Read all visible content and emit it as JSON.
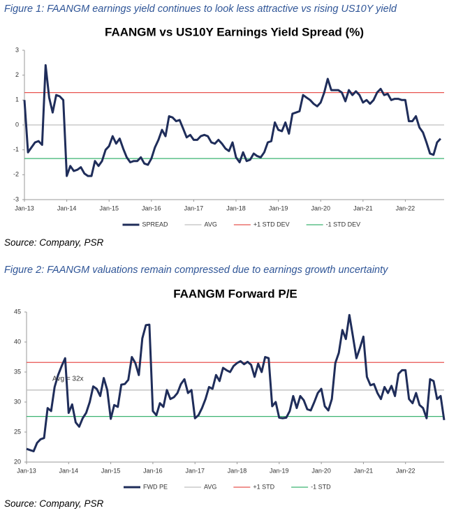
{
  "figures": [
    {
      "caption": "Figure 1: FAANGM earnings yield continues to look less attractive vs rising US10Y yield",
      "source": "Source: Company, PSR"
    },
    {
      "caption": "Figure 2: FAANGM valuations remain compressed due to earnings growth uncertainty",
      "source": "Source: Company, PSR"
    }
  ],
  "chart_data": [
    {
      "type": "line",
      "title": "FAANGM vs US10Y Earnings Yield Spread (%)",
      "x": [
        "2013-01",
        "2013-02",
        "2013-03",
        "2013-04",
        "2013-05",
        "2013-06",
        "2013-07",
        "2013-08",
        "2013-09",
        "2013-10",
        "2013-11",
        "2013-12",
        "2014-01",
        "2014-02",
        "2014-03",
        "2014-04",
        "2014-05",
        "2014-06",
        "2014-07",
        "2014-08",
        "2014-09",
        "2014-10",
        "2014-11",
        "2014-12",
        "2015-01",
        "2015-02",
        "2015-03",
        "2015-04",
        "2015-05",
        "2015-06",
        "2015-07",
        "2015-08",
        "2015-09",
        "2015-10",
        "2015-11",
        "2015-12",
        "2016-01",
        "2016-02",
        "2016-03",
        "2016-04",
        "2016-05",
        "2016-06",
        "2016-07",
        "2016-08",
        "2016-09",
        "2016-10",
        "2016-11",
        "2016-12",
        "2017-01",
        "2017-02",
        "2017-03",
        "2017-04",
        "2017-05",
        "2017-06",
        "2017-07",
        "2017-08",
        "2017-09",
        "2017-10",
        "2017-11",
        "2017-12",
        "2018-01",
        "2018-02",
        "2018-03",
        "2018-04",
        "2018-05",
        "2018-06",
        "2018-07",
        "2018-08",
        "2018-09",
        "2018-10",
        "2018-11",
        "2018-12",
        "2019-01",
        "2019-02",
        "2019-03",
        "2019-04",
        "2019-05",
        "2019-06",
        "2019-07",
        "2019-08",
        "2019-09",
        "2019-10",
        "2019-11",
        "2019-12",
        "2020-01",
        "2020-02",
        "2020-03",
        "2020-04",
        "2020-05",
        "2020-06",
        "2020-07",
        "2020-08",
        "2020-09",
        "2020-10",
        "2020-11",
        "2020-12",
        "2021-01",
        "2021-02",
        "2021-03",
        "2021-04",
        "2021-05",
        "2021-06",
        "2021-07",
        "2021-08",
        "2021-09",
        "2021-10",
        "2021-11",
        "2021-12",
        "2022-01",
        "2022-02",
        "2022-03",
        "2022-04",
        "2022-05",
        "2022-06",
        "2022-07",
        "2022-08",
        "2022-09",
        "2022-10",
        "2022-11"
      ],
      "series": [
        {
          "name": "SPREAD",
          "color": "#1f2d5a",
          "values": [
            1.0,
            -1.1,
            -0.9,
            -0.7,
            -0.65,
            -0.8,
            2.4,
            1.1,
            0.5,
            1.2,
            1.15,
            1.0,
            -2.05,
            -1.65,
            -1.85,
            -1.8,
            -1.7,
            -1.95,
            -2.05,
            -2.05,
            -1.45,
            -1.65,
            -1.45,
            -1.0,
            -0.85,
            -0.45,
            -0.75,
            -0.55,
            -0.95,
            -1.3,
            -1.5,
            -1.45,
            -1.45,
            -1.3,
            -1.55,
            -1.6,
            -1.35,
            -0.9,
            -0.6,
            -0.2,
            -0.45,
            0.35,
            0.3,
            0.15,
            0.2,
            -0.15,
            -0.5,
            -0.4,
            -0.6,
            -0.6,
            -0.45,
            -0.4,
            -0.45,
            -0.7,
            -0.75,
            -0.6,
            -0.75,
            -0.95,
            -1.05,
            -0.7,
            -1.3,
            -1.5,
            -1.1,
            -1.45,
            -1.4,
            -1.15,
            -1.25,
            -1.3,
            -1.1,
            -0.7,
            -0.65,
            0.1,
            -0.2,
            -0.25,
            0.1,
            -0.35,
            0.45,
            0.5,
            0.55,
            1.2,
            1.1,
            1.0,
            0.85,
            0.75,
            0.9,
            1.3,
            1.85,
            1.4,
            1.4,
            1.4,
            1.3,
            0.95,
            1.4,
            1.2,
            1.35,
            1.2,
            0.9,
            1.0,
            0.85,
            1.0,
            1.3,
            1.45,
            1.2,
            1.25,
            1.0,
            1.05,
            1.05,
            1.0,
            1.0,
            0.15,
            0.15,
            0.35,
            -0.1,
            -0.3,
            -0.7,
            -1.15,
            -1.2,
            -0.7,
            -0.55
          ]
        }
      ],
      "reference_lines": [
        {
          "name": "AVG",
          "color": "#bfbfbf",
          "value": 0
        },
        {
          "name": "+1 STD DEV",
          "color": "#e8534f",
          "value": 1.3
        },
        {
          "name": "-1 STD DEV",
          "color": "#3cb371",
          "value": -1.35
        }
      ],
      "xlim": [
        "2013-01",
        "2022-12"
      ],
      "xticks": [
        {
          "value": "2013-01",
          "label": "Jan-13"
        },
        {
          "value": "2014-01",
          "label": "Jan-14"
        },
        {
          "value": "2015-01",
          "label": "Jan-15"
        },
        {
          "value": "2016-01",
          "label": "Jan-16"
        },
        {
          "value": "2017-01",
          "label": "Jan-17"
        },
        {
          "value": "2018-01",
          "label": "Jan-18"
        },
        {
          "value": "2019-01",
          "label": "Jan-19"
        },
        {
          "value": "2020-01",
          "label": "Jan-20"
        },
        {
          "value": "2021-01",
          "label": "Jan-21"
        },
        {
          "value": "2022-01",
          "label": "Jan-22"
        }
      ],
      "ylim": [
        -3,
        3
      ],
      "yticks": [
        -3,
        -2,
        -1,
        0,
        1,
        2,
        3
      ]
    },
    {
      "type": "line",
      "title": "FAANGM Forward P/E",
      "x": [
        "2013-01",
        "2013-02",
        "2013-03",
        "2013-04",
        "2013-05",
        "2013-06",
        "2013-07",
        "2013-08",
        "2013-09",
        "2013-10",
        "2013-11",
        "2013-12",
        "2014-01",
        "2014-02",
        "2014-03",
        "2014-04",
        "2014-05",
        "2014-06",
        "2014-07",
        "2014-08",
        "2014-09",
        "2014-10",
        "2014-11",
        "2014-12",
        "2015-01",
        "2015-02",
        "2015-03",
        "2015-04",
        "2015-05",
        "2015-06",
        "2015-07",
        "2015-08",
        "2015-09",
        "2015-10",
        "2015-11",
        "2015-12",
        "2016-01",
        "2016-02",
        "2016-03",
        "2016-04",
        "2016-05",
        "2016-06",
        "2016-07",
        "2016-08",
        "2016-09",
        "2016-10",
        "2016-11",
        "2016-12",
        "2017-01",
        "2017-02",
        "2017-03",
        "2017-04",
        "2017-05",
        "2017-06",
        "2017-07",
        "2017-08",
        "2017-09",
        "2017-10",
        "2017-11",
        "2017-12",
        "2018-01",
        "2018-02",
        "2018-03",
        "2018-04",
        "2018-05",
        "2018-06",
        "2018-07",
        "2018-08",
        "2018-09",
        "2018-10",
        "2018-11",
        "2018-12",
        "2019-01",
        "2019-02",
        "2019-03",
        "2019-04",
        "2019-05",
        "2019-06",
        "2019-07",
        "2019-08",
        "2019-09",
        "2019-10",
        "2019-11",
        "2019-12",
        "2020-01",
        "2020-02",
        "2020-03",
        "2020-04",
        "2020-05",
        "2020-06",
        "2020-07",
        "2020-08",
        "2020-09",
        "2020-10",
        "2020-11",
        "2020-12",
        "2021-01",
        "2021-02",
        "2021-03",
        "2021-04",
        "2021-05",
        "2021-06",
        "2021-07",
        "2021-08",
        "2021-09",
        "2021-10",
        "2021-11",
        "2021-12",
        "2022-01",
        "2022-02",
        "2022-03",
        "2022-04",
        "2022-05",
        "2022-06",
        "2022-07",
        "2022-08",
        "2022-09",
        "2022-10",
        "2022-11",
        "2022-12"
      ],
      "series": [
        {
          "name": "FWD PE",
          "color": "#1f2d5a",
          "values": [
            22.2,
            22.0,
            21.8,
            23.2,
            23.8,
            24.0,
            29.0,
            28.5,
            32.5,
            34.5,
            36.0,
            37.3,
            28.2,
            29.6,
            26.6,
            25.9,
            27.3,
            28.2,
            30.0,
            32.6,
            32.2,
            31.0,
            34.0,
            32.0,
            27.2,
            29.5,
            29.2,
            32.9,
            33.0,
            33.7,
            37.5,
            36.5,
            34.5,
            40.6,
            42.8,
            42.9,
            28.5,
            27.8,
            29.8,
            29.2,
            32.0,
            30.5,
            30.8,
            31.5,
            33.0,
            33.8,
            31.5,
            32.0,
            27.3,
            27.8,
            29.0,
            30.5,
            32.5,
            32.2,
            34.5,
            33.5,
            35.7,
            35.3,
            35.0,
            36.0,
            36.5,
            36.8,
            36.3,
            36.7,
            36.2,
            34.2,
            36.4,
            35.0,
            37.5,
            37.3,
            29.3,
            30.0,
            27.4,
            27.3,
            27.4,
            28.5,
            31.0,
            29.0,
            31.0,
            30.3,
            28.8,
            28.6,
            30.0,
            31.5,
            32.2,
            29.3,
            28.6,
            30.5,
            36.5,
            38.2,
            42.0,
            40.5,
            44.5,
            41.0,
            37.3,
            39.0,
            40.9,
            34.2,
            32.8,
            33.0,
            31.5,
            30.5,
            32.5,
            31.5,
            32.7,
            31.0,
            34.7,
            35.3,
            35.3,
            30.5,
            29.8,
            31.5,
            29.5,
            29.0,
            27.3,
            33.8,
            33.5,
            30.5,
            31.0,
            27.0
          ]
        }
      ],
      "reference_lines": [
        {
          "name": "AVG",
          "color": "#bfbfbf",
          "value": 32
        },
        {
          "name": "+1 STD",
          "color": "#e8534f",
          "value": 36.6
        },
        {
          "name": "-1 STD",
          "color": "#3cb371",
          "value": 27.6
        }
      ],
      "annotation": {
        "text": "Avg = 32x",
        "x": "2013-12",
        "y": 32
      },
      "xlim": [
        "2013-01",
        "2022-12"
      ],
      "xticks": [
        {
          "value": "2013-01",
          "label": "Jan-13"
        },
        {
          "value": "2014-01",
          "label": "Jan-14"
        },
        {
          "value": "2015-01",
          "label": "Jan-15"
        },
        {
          "value": "2016-01",
          "label": "Jan-16"
        },
        {
          "value": "2017-01",
          "label": "Jan-17"
        },
        {
          "value": "2018-01",
          "label": "Jan-18"
        },
        {
          "value": "2019-01",
          "label": "Jan-19"
        },
        {
          "value": "2020-01",
          "label": "Jan-20"
        },
        {
          "value": "2021-01",
          "label": "Jan-21"
        },
        {
          "value": "2022-01",
          "label": "Jan-22"
        }
      ],
      "ylim": [
        20,
        45
      ],
      "yticks": [
        20,
        25,
        30,
        35,
        40,
        45
      ]
    }
  ]
}
